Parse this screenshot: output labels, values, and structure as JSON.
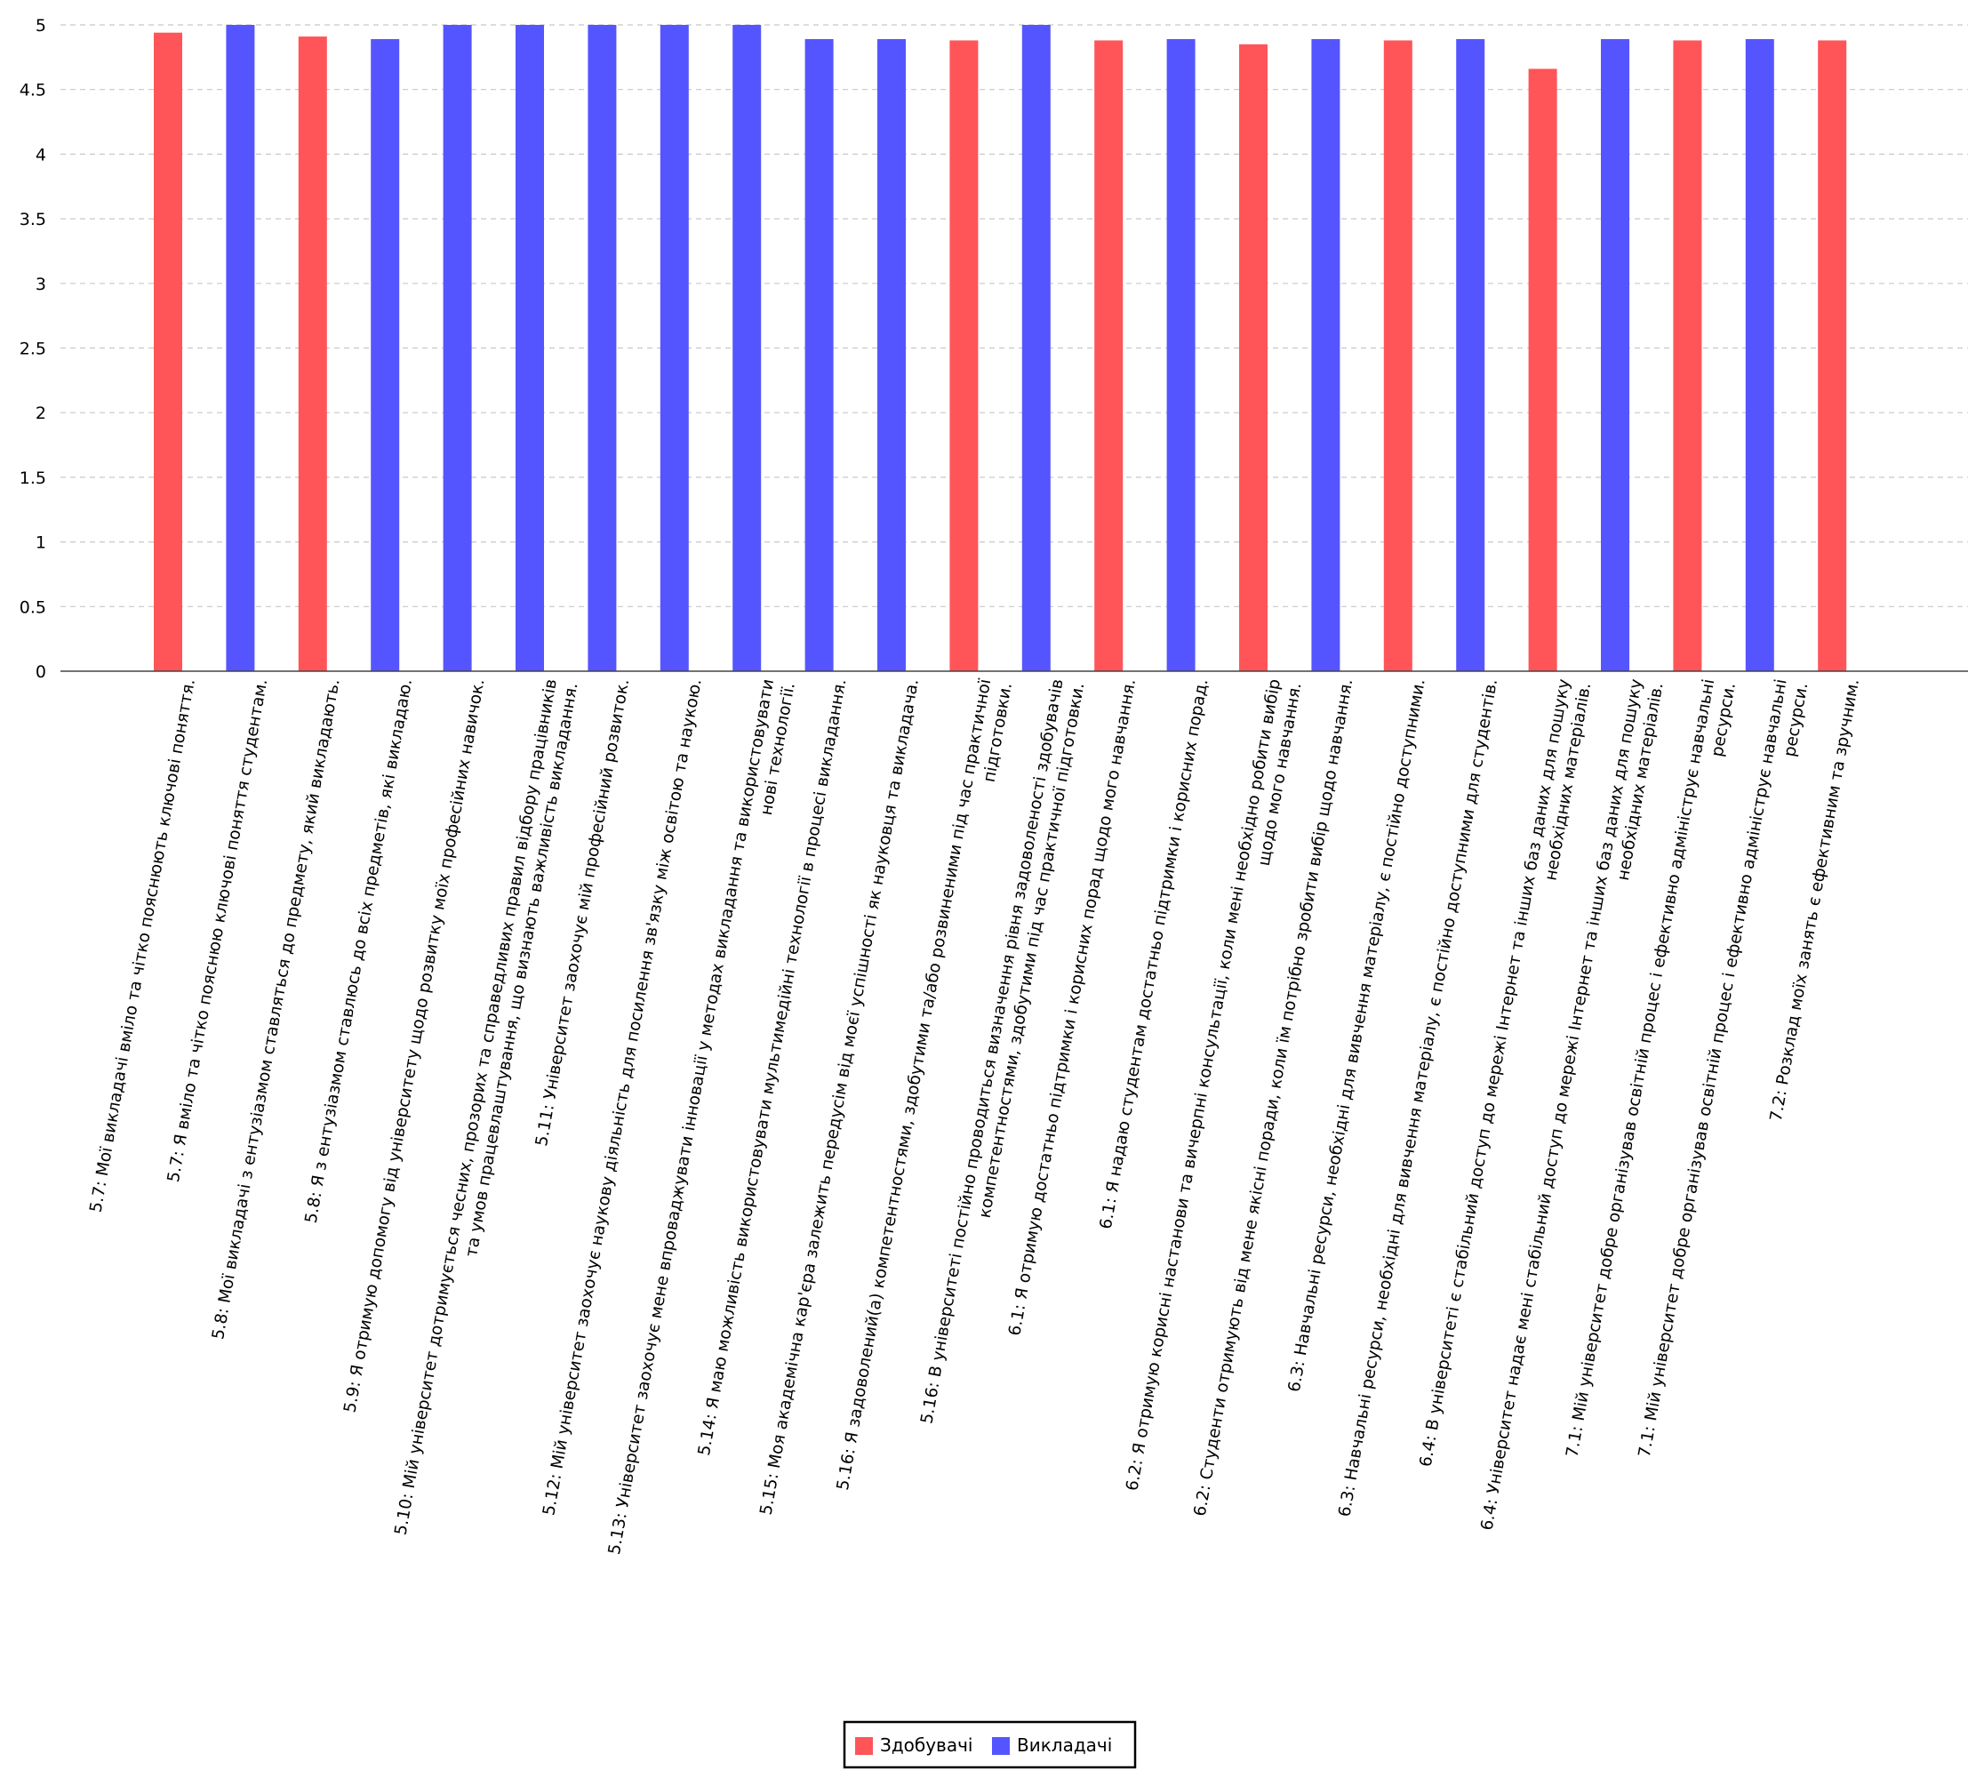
{
  "chart_data": {
    "type": "bar",
    "ylim": [
      0,
      5
    ],
    "yticks": [
      "0",
      "0.5",
      "1",
      "1.5",
      "2",
      "2.5",
      "3",
      "3.5",
      "4",
      "4.5",
      "5"
    ],
    "grid": true,
    "legend_position": "bottom-center",
    "colors": {
      "students": "#ff5558",
      "teachers": "#5555ff"
    },
    "legend": [
      {
        "name": "Здобувачі",
        "series": "students"
      },
      {
        "name": "Викладачі",
        "series": "teachers"
      }
    ],
    "categories": [
      {
        "lines": [
          "5.7: Мої викладачі вміло та чітко пояснюють ключові поняття."
        ],
        "series": "students",
        "value": 4.94
      },
      {
        "lines": [
          "5.7: Я вміло та чітко пояснюю ключові поняття студентам."
        ],
        "series": "teachers",
        "value": 5.0
      },
      {
        "lines": [
          "5.8: Мої викладачі з ентузіазмом ставляться до предмету, який викладають."
        ],
        "series": "students",
        "value": 4.91
      },
      {
        "lines": [
          "5.8: Я з ентузіазмом ставлюсь до всіх предметів, які викладаю."
        ],
        "series": "teachers",
        "value": 4.89
      },
      {
        "lines": [
          "5.9: Я отримую допомогу від університету щодо розвитку моїх професійних навичок."
        ],
        "series": "teachers",
        "value": 5.0
      },
      {
        "lines": [
          "5.10: Мій університет дотримується чесних, прозорих та справедливих правил відбору працівників",
          "та умов працевлаштування, що визнають важливість викладання."
        ],
        "series": "teachers",
        "value": 5.0
      },
      {
        "lines": [
          "5.11: Університет заохочує мій професійний розвиток."
        ],
        "series": "teachers",
        "value": 5.0
      },
      {
        "lines": [
          "5.12: Мій університет заохочує наукову діяльність для посилення зв'язку між освітою та наукою."
        ],
        "series": "teachers",
        "value": 5.0
      },
      {
        "lines": [
          "5.13: Університет заохочує мене впроваджувати інновації у методах викладання та використовувати",
          "нові технології."
        ],
        "series": "teachers",
        "value": 5.0
      },
      {
        "lines": [
          "5.14: Я маю можливість використовувати мультимедійні технології в процесі викладання."
        ],
        "series": "teachers",
        "value": 4.89
      },
      {
        "lines": [
          "5.15: Моя академічна кар'єра залежить передусім від моєї успішності як науковця та викладача."
        ],
        "series": "teachers",
        "value": 4.89
      },
      {
        "lines": [
          "5.16: Я задоволений(а) компетентностями, здобутими та/або розвиненими під час практичної",
          "підготовки."
        ],
        "series": "students",
        "value": 4.88
      },
      {
        "lines": [
          "5.16: В університеті постійно проводиться  визначення рівня задоволеності здобувачів",
          "компетентностями, здобутими під час практичної підготовки."
        ],
        "series": "teachers",
        "value": 5.0
      },
      {
        "lines": [
          "6.1: Я отримую достатньо підтримки і корисних порад щодо мого навчання."
        ],
        "series": "students",
        "value": 4.88
      },
      {
        "lines": [
          "6.1: Я надаю студентам достатньо підтримки і корисних порад."
        ],
        "series": "teachers",
        "value": 4.89
      },
      {
        "lines": [
          "6.2: Я отримую корисні настанови та вичерпні консультації, коли мені необхідно робити вибір",
          "щодо мого навчання."
        ],
        "series": "students",
        "value": 4.85
      },
      {
        "lines": [
          "6.2: Студенти отримують від мене якісні поради, коли їм потрібно зробити вибір щодо навчання."
        ],
        "series": "teachers",
        "value": 4.89
      },
      {
        "lines": [
          "6.3: Навчальні ресурси, необхідні для вивчення матеріалу, є постійно доступними."
        ],
        "series": "students",
        "value": 4.88
      },
      {
        "lines": [
          "6.3: Навчальні ресурси, необхідні для вивчення матеріалу, є постійно доступними для студентів."
        ],
        "series": "teachers",
        "value": 4.89
      },
      {
        "lines": [
          "6.4: В університеті є стабільний доступ до мережі Інтернет та інших баз даних для пошуку",
          "необхідних матеріалів."
        ],
        "series": "students",
        "value": 4.66
      },
      {
        "lines": [
          "6.4: Університет надає мені стабільний доступ до мережі Інтернет та інших баз даних для пошуку",
          "необхідних матеріалів."
        ],
        "series": "teachers",
        "value": 4.89
      },
      {
        "lines": [
          "7.1: Мій університет добре організував освітній процес і ефективно адмініструє навчальні",
          "ресурси."
        ],
        "series": "students",
        "value": 4.88
      },
      {
        "lines": [
          "7.1: Мій університет добре організував освітній процес і ефективно адмініструє навчальні",
          "ресурси."
        ],
        "series": "teachers",
        "value": 4.89
      },
      {
        "lines": [
          "7.2: Розклад моїх занять є ефективним та зручним."
        ],
        "series": "students",
        "value": 4.88
      }
    ]
  }
}
